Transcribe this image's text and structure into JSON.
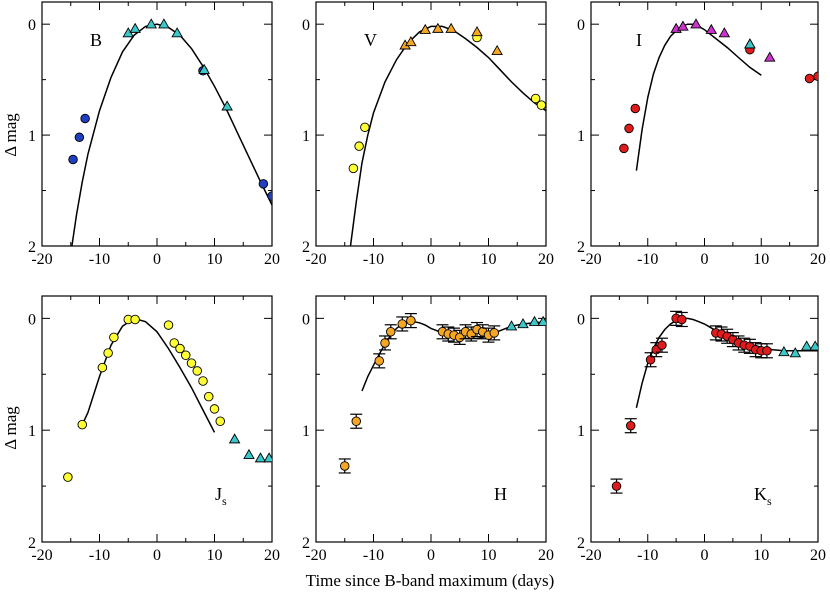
{
  "figure": {
    "xlabel": "Time since B-band maximum (days)",
    "ylabel": "Δ mag",
    "xlim": [
      -20,
      20
    ],
    "ylim": [
      2,
      -0.2
    ],
    "xticks": [
      -20,
      -10,
      0,
      10,
      20
    ],
    "yticks": [
      0,
      1,
      2
    ]
  },
  "chart_data": [
    {
      "type": "scatter",
      "title": "B",
      "band": {
        "main": "B",
        "sub": ""
      },
      "xlim": [
        -20,
        20
      ],
      "ylim": [
        2,
        -0.2
      ],
      "xlabel": "",
      "ylabel": "Δ mag",
      "series": [
        {
          "name": "circles",
          "marker": "circle",
          "color": "#1f3fbf",
          "x": [
            -14.6,
            -13.5,
            -12.5,
            8.0,
            18.5,
            20.0
          ],
          "y": [
            1.22,
            1.02,
            0.85,
            0.42,
            1.44,
            1.55
          ]
        },
        {
          "name": "triangles",
          "marker": "triangle",
          "color": "#3cc8c8",
          "x": [
            -5.0,
            -3.8,
            -1.0,
            1.2,
            3.5,
            8.2,
            12.2
          ],
          "y": [
            0.08,
            0.04,
            0.0,
            0.0,
            0.08,
            0.41,
            0.74
          ]
        },
        {
          "name": "model",
          "marker": "line",
          "color": "#000000",
          "x": [
            -14.8,
            -14.0,
            -13.0,
            -12.0,
            -10.0,
            -8.0,
            -6.0,
            -4.0,
            -2.0,
            0.0,
            2.0,
            4.0,
            6.0,
            8.0,
            10.0,
            12.0,
            14.0,
            16.0,
            18.0,
            20.0
          ],
          "y": [
            2.0,
            1.72,
            1.42,
            1.17,
            0.78,
            0.48,
            0.25,
            0.1,
            0.02,
            0.0,
            0.03,
            0.1,
            0.22,
            0.38,
            0.56,
            0.76,
            0.98,
            1.2,
            1.42,
            1.63
          ]
        }
      ]
    },
    {
      "type": "scatter",
      "title": "V",
      "band": {
        "main": "V",
        "sub": ""
      },
      "xlim": [
        -20,
        20
      ],
      "ylim": [
        2,
        -0.2
      ],
      "xlabel": "",
      "ylabel": "",
      "series": [
        {
          "name": "circles",
          "marker": "circle",
          "color": "#ffff33",
          "x": [
            -13.5,
            -12.5,
            -11.5,
            8.0,
            18.2,
            19.2
          ],
          "y": [
            1.3,
            1.1,
            0.93,
            0.12,
            0.67,
            0.73
          ]
        },
        {
          "name": "triangles",
          "marker": "triangle",
          "color": "#f5a623",
          "x": [
            -4.5,
            -3.5,
            -1.0,
            1.2,
            3.5,
            8.0,
            11.5
          ],
          "y": [
            0.19,
            0.16,
            0.05,
            0.04,
            0.04,
            0.07,
            0.24
          ]
        },
        {
          "name": "model",
          "marker": "line",
          "color": "#000000",
          "x": [
            -14.0,
            -13.0,
            -12.0,
            -11.0,
            -10.0,
            -8.0,
            -6.0,
            -4.0,
            -2.0,
            0.0,
            2.0,
            4.0,
            6.0,
            8.0,
            10.0,
            12.0,
            14.0,
            16.0,
            18.0,
            20.0
          ],
          "y": [
            2.0,
            1.6,
            1.25,
            1.0,
            0.8,
            0.52,
            0.32,
            0.17,
            0.07,
            0.02,
            0.02,
            0.06,
            0.13,
            0.21,
            0.3,
            0.41,
            0.52,
            0.62,
            0.71,
            0.78
          ]
        }
      ]
    },
    {
      "type": "scatter",
      "title": "I",
      "band": {
        "main": "I",
        "sub": ""
      },
      "xlim": [
        -20,
        20
      ],
      "ylim": [
        2,
        -0.2
      ],
      "xlabel": "",
      "ylabel": "",
      "series": [
        {
          "name": "circles",
          "marker": "circle",
          "color": "#e01b1b",
          "x": [
            -14.2,
            -13.3,
            -12.2,
            8.0,
            18.5,
            20.0
          ],
          "y": [
            1.12,
            0.94,
            0.76,
            0.23,
            0.49,
            0.47
          ]
        },
        {
          "name": "triangles",
          "marker": "triangle",
          "color": "#cc33cc",
          "x": [
            -5.0,
            -3.8,
            -1.5,
            1.2,
            3.5,
            8.0,
            11.5
          ],
          "y": [
            0.04,
            0.02,
            0.0,
            0.05,
            0.08,
            0.18,
            0.3
          ]
        },
        {
          "name": "triangles2",
          "marker": "triangle",
          "color": "#3cc8c8",
          "x": [
            8.0
          ],
          "y": [
            0.18
          ]
        },
        {
          "name": "model",
          "marker": "line",
          "color": "#000000",
          "x": [
            -12.0,
            -11.0,
            -10.0,
            -9.0,
            -8.0,
            -7.0,
            -6.0,
            -5.0,
            -4.0,
            -3.0,
            -2.0,
            -1.0,
            0.0,
            1.0,
            2.0,
            4.0,
            6.0,
            8.0,
            10.0
          ],
          "y": [
            1.32,
            0.95,
            0.66,
            0.45,
            0.3,
            0.19,
            0.11,
            0.06,
            0.02,
            0.0,
            0.0,
            0.02,
            0.05,
            0.09,
            0.13,
            0.21,
            0.3,
            0.39,
            0.46
          ]
        }
      ]
    },
    {
      "type": "scatter",
      "title": "Js",
      "band": {
        "main": "J",
        "sub": "s"
      },
      "xlim": [
        -20,
        20
      ],
      "ylim": [
        2,
        -0.2
      ],
      "xlabel": "",
      "ylabel": "Δ mag",
      "series": [
        {
          "name": "circles",
          "marker": "circle",
          "color": "#ffff33",
          "x": [
            -15.5,
            -13.0,
            -9.5,
            -8.5,
            -7.5,
            -5.0,
            -3.8,
            2.0,
            3.0,
            4.0,
            5.0,
            6.0,
            7.0,
            8.0,
            9.0,
            10.0,
            11.0
          ],
          "y": [
            1.42,
            0.95,
            0.44,
            0.31,
            0.17,
            0.01,
            0.01,
            0.06,
            0.22,
            0.27,
            0.33,
            0.4,
            0.47,
            0.56,
            0.7,
            0.81,
            0.92
          ]
        },
        {
          "name": "triangles",
          "marker": "triangle",
          "color": "#3cc8c8",
          "x": [
            13.5,
            16.0,
            18.0,
            19.5
          ],
          "y": [
            1.08,
            1.22,
            1.25,
            1.25
          ]
        },
        {
          "name": "model",
          "marker": "line",
          "color": "#000000",
          "x": [
            -13.0,
            -12.0,
            -10.0,
            -8.0,
            -6.0,
            -4.0,
            -2.0,
            0.0,
            2.0,
            4.0,
            6.0,
            8.0,
            10.0
          ],
          "y": [
            0.95,
            0.84,
            0.52,
            0.24,
            0.07,
            0.0,
            0.03,
            0.12,
            0.27,
            0.44,
            0.62,
            0.82,
            1.02
          ]
        }
      ]
    },
    {
      "type": "scatter",
      "title": "H",
      "band": {
        "main": "H",
        "sub": ""
      },
      "xlim": [
        -20,
        20
      ],
      "ylim": [
        2,
        -0.2
      ],
      "xlabel": "Time since B-band maximum (days)",
      "ylabel": "",
      "series": [
        {
          "name": "circles",
          "marker": "circle",
          "color": "#f5a623",
          "errorbars": true,
          "x": [
            -15.0,
            -13.0,
            -9.0,
            -8.0,
            -7.0,
            -5.0,
            -3.5,
            2.0,
            3.0,
            4.0,
            5.0,
            6.0,
            7.0,
            8.0,
            9.0,
            10.0,
            11.0
          ],
          "y": [
            1.32,
            0.92,
            0.38,
            0.22,
            0.12,
            0.05,
            0.02,
            0.12,
            0.14,
            0.15,
            0.17,
            0.12,
            0.14,
            0.1,
            0.12,
            0.15,
            0.13
          ]
        },
        {
          "name": "triangles",
          "marker": "triangle",
          "color": "#3cc8c8",
          "x": [
            14.0,
            16.0,
            18.0,
            19.5
          ],
          "y": [
            0.07,
            0.05,
            0.03,
            0.03
          ]
        },
        {
          "name": "model",
          "marker": "line",
          "color": "#000000",
          "x": [
            -12.0,
            -11.0,
            -10.0,
            -9.0,
            -8.0,
            -7.0,
            -6.0,
            -5.0,
            -4.0,
            -3.0,
            -2.0,
            -1.0,
            0.0,
            1.0,
            2.0,
            3.0,
            4.0,
            5.0,
            6.0,
            7.0,
            8.0,
            9.0,
            10.0,
            11.0,
            12.0,
            13.0,
            14.0,
            16.0,
            18.0,
            20.0
          ],
          "y": [
            0.65,
            0.52,
            0.42,
            0.32,
            0.23,
            0.15,
            0.09,
            0.05,
            0.03,
            0.03,
            0.04,
            0.06,
            0.09,
            0.11,
            0.13,
            0.15,
            0.16,
            0.17,
            0.18,
            0.18,
            0.18,
            0.17,
            0.15,
            0.13,
            0.11,
            0.09,
            0.07,
            0.05,
            0.04,
            0.03
          ]
        }
      ]
    },
    {
      "type": "scatter",
      "title": "Ks",
      "band": {
        "main": "K",
        "sub": "s"
      },
      "xlim": [
        -20,
        20
      ],
      "ylim": [
        2,
        -0.2
      ],
      "xlabel": "",
      "ylabel": "",
      "series": [
        {
          "name": "circles",
          "marker": "circle",
          "color": "#e01b1b",
          "errorbars": true,
          "x": [
            -15.5,
            -13.0,
            -9.5,
            -8.5,
            -7.5,
            -5.0,
            -4.0,
            2.0,
            3.0,
            4.0,
            5.0,
            6.0,
            7.0,
            8.0,
            9.0,
            10.0,
            11.0
          ],
          "y": [
            1.5,
            0.96,
            0.37,
            0.28,
            0.24,
            0.0,
            0.01,
            0.13,
            0.14,
            0.16,
            0.19,
            0.22,
            0.24,
            0.25,
            0.28,
            0.29,
            0.29
          ]
        },
        {
          "name": "triangles",
          "marker": "triangle",
          "color": "#3cc8c8",
          "x": [
            14.0,
            16.0,
            18.0,
            19.5
          ],
          "y": [
            0.3,
            0.31,
            0.25,
            0.25
          ]
        },
        {
          "name": "model",
          "marker": "line",
          "color": "#000000",
          "x": [
            -12.0,
            -11.0,
            -10.0,
            -9.0,
            -8.0,
            -7.0,
            -6.0,
            -5.0,
            -4.0,
            -3.0,
            -2.0,
            -1.0,
            0.0,
            1.0,
            2.0,
            4.0,
            6.0,
            8.0,
            10.0,
            12.0,
            14.0,
            16.0,
            18.0,
            20.0
          ],
          "y": [
            0.8,
            0.58,
            0.4,
            0.27,
            0.17,
            0.1,
            0.05,
            0.02,
            0.0,
            0.0,
            0.01,
            0.03,
            0.05,
            0.08,
            0.11,
            0.16,
            0.2,
            0.23,
            0.26,
            0.28,
            0.29,
            0.29,
            0.29,
            0.29
          ]
        }
      ]
    }
  ]
}
